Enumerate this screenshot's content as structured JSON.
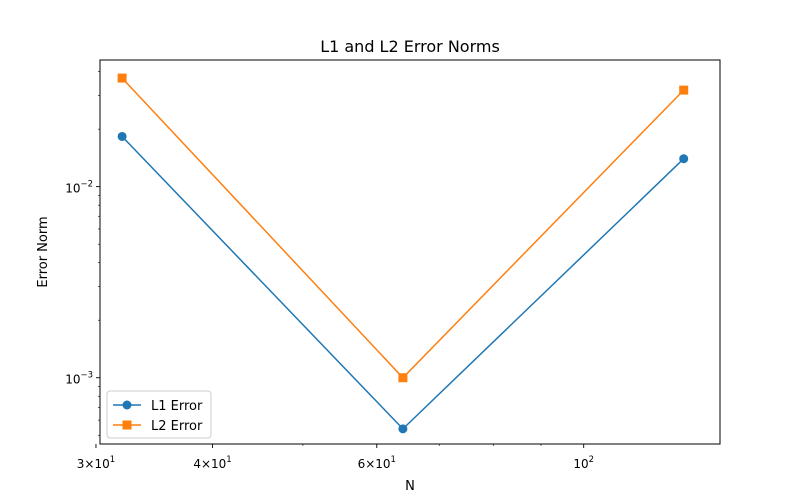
{
  "chart_data": {
    "type": "line",
    "title": "L1 and L2 Error Norms",
    "xlabel": "N",
    "ylabel": "Error Norm",
    "x_scale": "log",
    "y_scale": "log",
    "xlim": [
      30.3,
      140
    ],
    "ylim": [
      0.00045,
      0.046
    ],
    "x": [
      32,
      64,
      128
    ],
    "series": [
      {
        "name": "L1 Error",
        "marker": "circle",
        "color": "#1f77b4",
        "values": [
          0.0183,
          0.00054,
          0.014
        ]
      },
      {
        "name": "L2 Error",
        "marker": "square",
        "color": "#ff7f0e",
        "values": [
          0.037,
          0.001,
          0.032
        ]
      }
    ],
    "x_ticks": [
      {
        "value": 30,
        "base": "3×10",
        "exp": "1"
      },
      {
        "value": 40,
        "base": "4×10",
        "exp": "1"
      },
      {
        "value": 60,
        "base": "6×10",
        "exp": "1"
      },
      {
        "value": 100,
        "base": "10",
        "exp": "2"
      }
    ],
    "y_ticks": [
      {
        "value": 0.001,
        "base": "10",
        "exp": "−3"
      },
      {
        "value": 0.01,
        "base": "10",
        "exp": "−2"
      }
    ],
    "grid": false,
    "legend": "lower-left"
  }
}
